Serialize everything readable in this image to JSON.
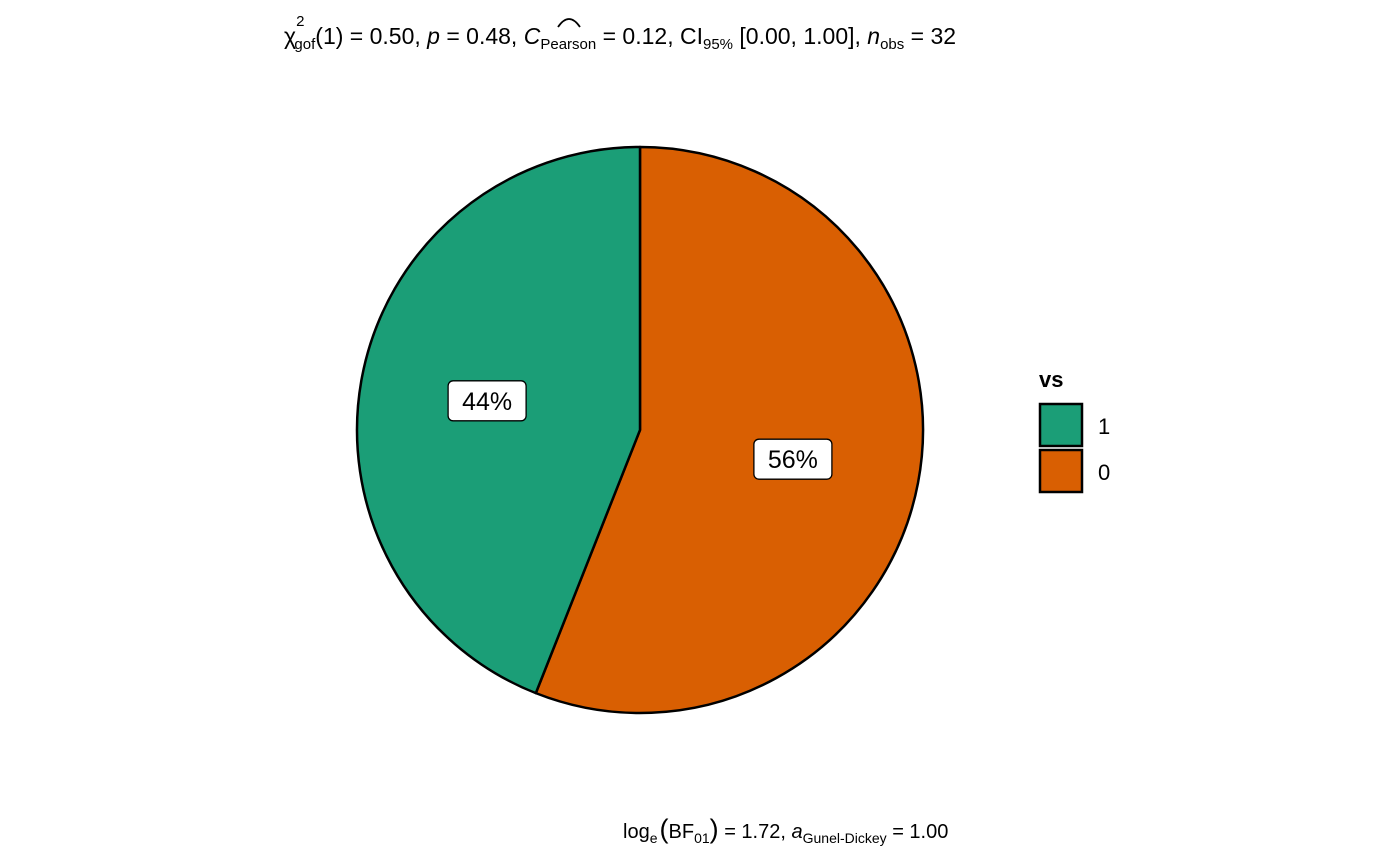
{
  "chart_data": {
    "type": "pie",
    "subtitle": {
      "chi_symbol": "χ",
      "chi_sup": "2",
      "chi_sub": "gof",
      "part1": "(1) = 0.50, ",
      "p_symbol": "p",
      "part2": " = 0.48, ",
      "c_symbol": "C",
      "c_sub": "Pearson",
      "part3": " = 0.12, CI",
      "ci_sub": "95%",
      "part4": " [0.00, 1.00], ",
      "n_symbol": "n",
      "n_sub": "obs",
      "part5": " = 32"
    },
    "caption": {
      "log": "log",
      "log_sub": "e",
      "bf": "BF",
      "bf_sub": "01",
      "part1": " = 1.72, ",
      "a_symbol": "a",
      "a_sub": "Gunel-Dickey",
      "part2": " = 1.00"
    },
    "legend": {
      "title": "vs",
      "position": "right"
    },
    "slices": [
      {
        "category": "0",
        "value": 56,
        "label": "56%",
        "color": "#D95F02"
      },
      {
        "category": "1",
        "value": 44,
        "label": "44%",
        "color": "#1B9E77"
      }
    ],
    "legend_order": [
      "1",
      "0"
    ],
    "start": "12 o'clock",
    "direction": "clockwise"
  }
}
